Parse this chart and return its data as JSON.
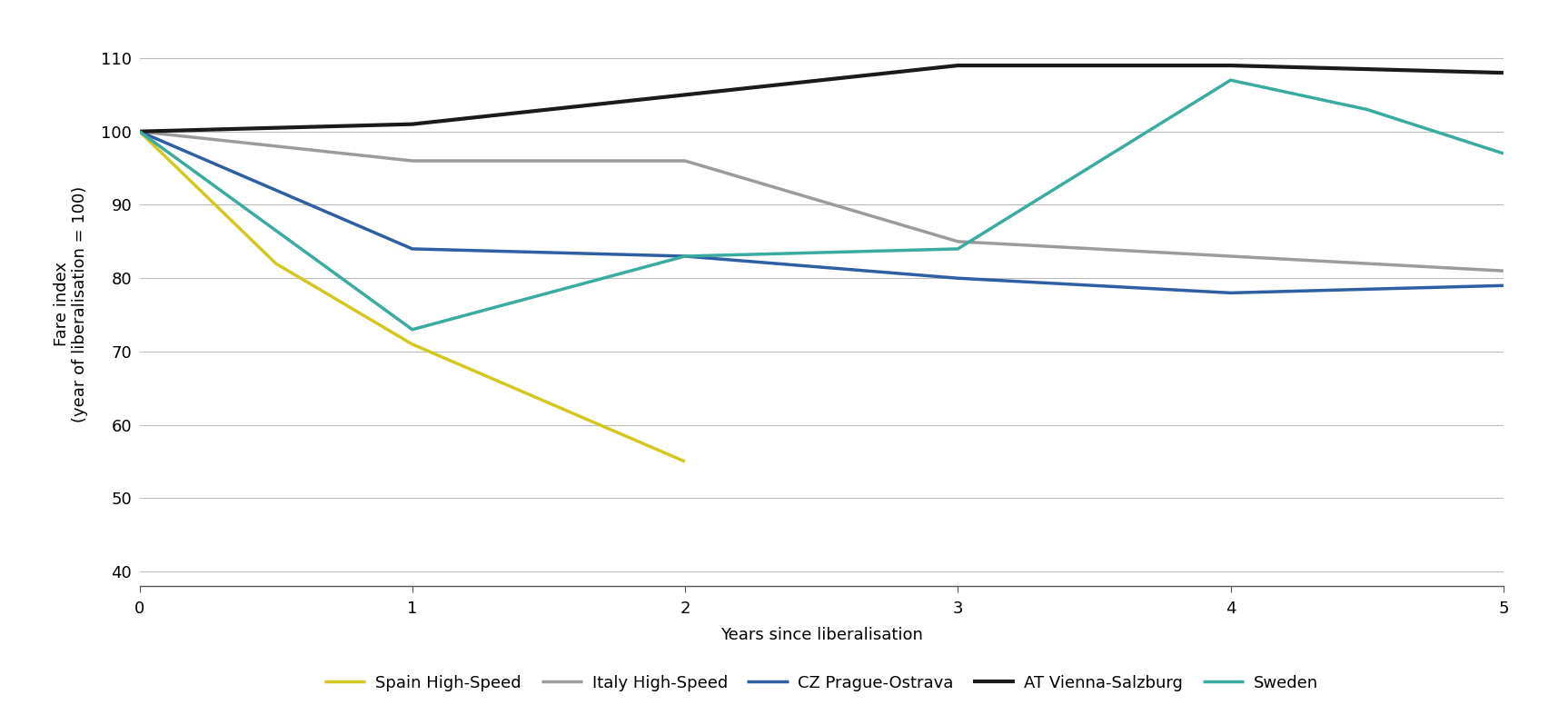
{
  "title": "",
  "xlabel": "Years since liberalisation",
  "ylabel": "Fare index\n(year of liberalisation = 100)",
  "xlim": [
    0,
    5
  ],
  "ylim": [
    38,
    115
  ],
  "yticks": [
    40,
    50,
    60,
    70,
    80,
    90,
    100,
    110
  ],
  "xticks": [
    0,
    1,
    2,
    3,
    4,
    5
  ],
  "series": [
    {
      "label": "Spain High-Speed",
      "color": "#d4c820",
      "linewidth": 2.5,
      "x": [
        0,
        0.5,
        1,
        2
      ],
      "y": [
        100,
        82,
        71,
        55
      ]
    },
    {
      "label": "Italy High-Speed",
      "color": "#9b9b9b",
      "linewidth": 2.5,
      "x": [
        0,
        0.5,
        1,
        2,
        3,
        4,
        5
      ],
      "y": [
        100,
        98,
        96,
        96,
        85,
        83,
        81
      ]
    },
    {
      "label": "CZ Prague-Ostrava",
      "color": "#2e5fa3",
      "linewidth": 2.5,
      "x": [
        0,
        1,
        2,
        3,
        4,
        5
      ],
      "y": [
        100,
        84,
        83,
        80,
        78,
        79
      ]
    },
    {
      "label": "AT Vienna-Salzburg",
      "color": "#1a1a1a",
      "linewidth": 3.0,
      "x": [
        0,
        1,
        2,
        3,
        4,
        5
      ],
      "y": [
        100,
        101,
        105,
        109,
        109,
        108
      ]
    },
    {
      "label": "Sweden",
      "color": "#3aaba0",
      "linewidth": 2.5,
      "x": [
        0,
        1,
        2,
        3,
        4,
        4.5,
        5
      ],
      "y": [
        100,
        73,
        83,
        84,
        107,
        103,
        97
      ]
    }
  ],
  "background_color": "#ffffff",
  "grid_color": "#bbbbbb",
  "legend_fontsize": 13,
  "axis_label_fontsize": 13,
  "tick_fontsize": 13
}
